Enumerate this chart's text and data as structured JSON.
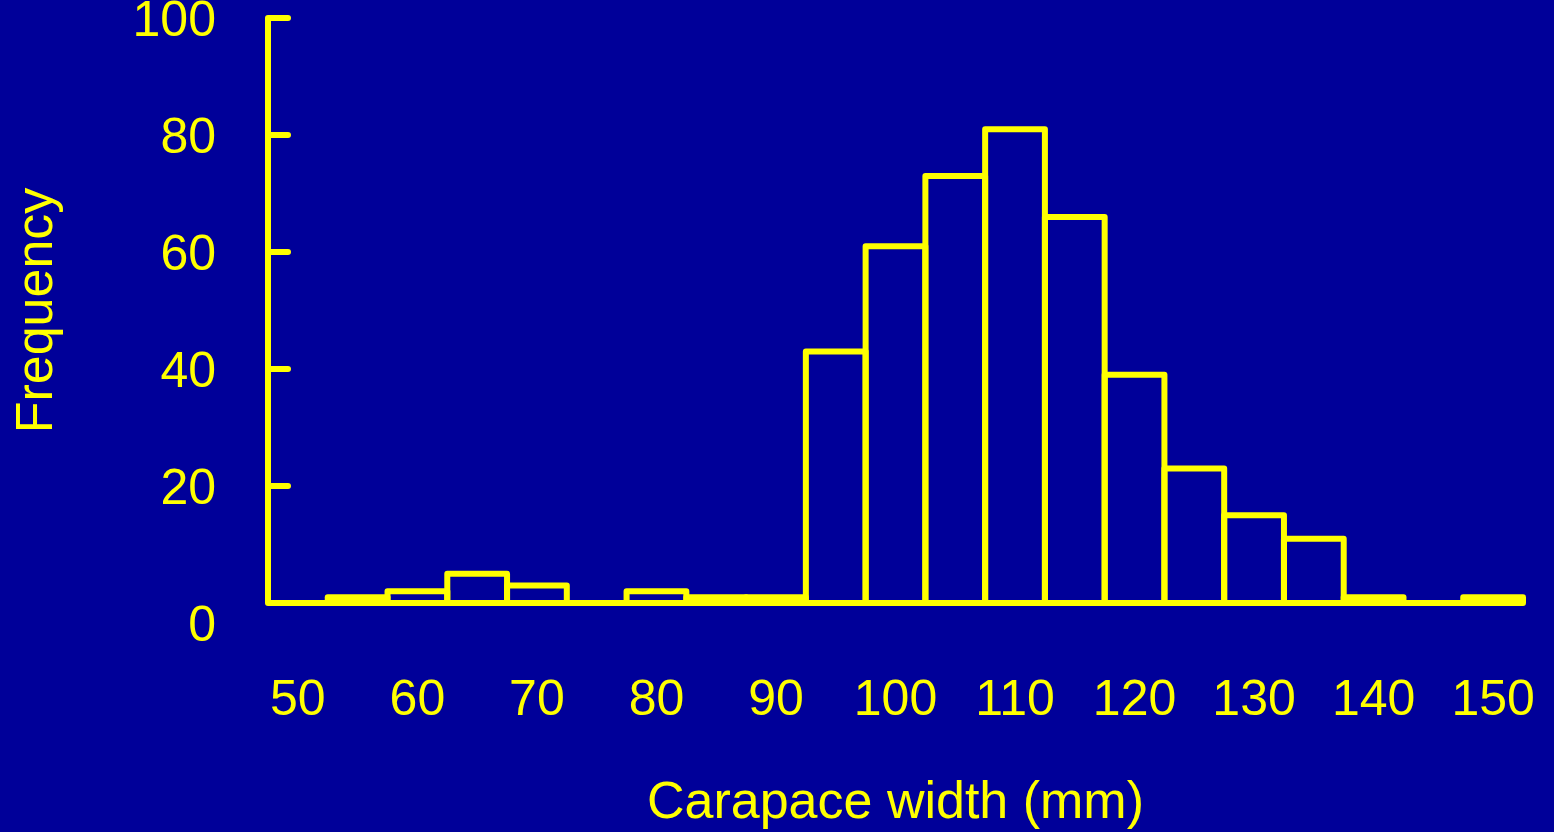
{
  "chart_data": {
    "type": "histogram",
    "xlabel": "Carapace width (mm)",
    "ylabel": "Frequency",
    "color": "#ffff00",
    "bins": [
      52.5,
      57.5,
      62.5,
      67.5,
      72.5,
      77.5,
      82.5,
      87.5,
      92.5,
      97.5,
      102.5,
      107.5,
      112.5,
      117.5,
      122.5,
      127.5,
      132.5,
      137.5,
      142.5,
      147.5,
      152.5
    ],
    "values": [
      1,
      2,
      5,
      3,
      0,
      2,
      1,
      1,
      43,
      61,
      73,
      81,
      66,
      39,
      23,
      15,
      11,
      1,
      0,
      1
    ],
    "xlim": [
      47.5,
      152.5
    ],
    "xticks": [
      50,
      60,
      70,
      80,
      90,
      100,
      110,
      120,
      130,
      140,
      150
    ],
    "ylim": [
      0,
      100
    ],
    "yticks": [
      0,
      20,
      40,
      60,
      80,
      100
    ]
  }
}
